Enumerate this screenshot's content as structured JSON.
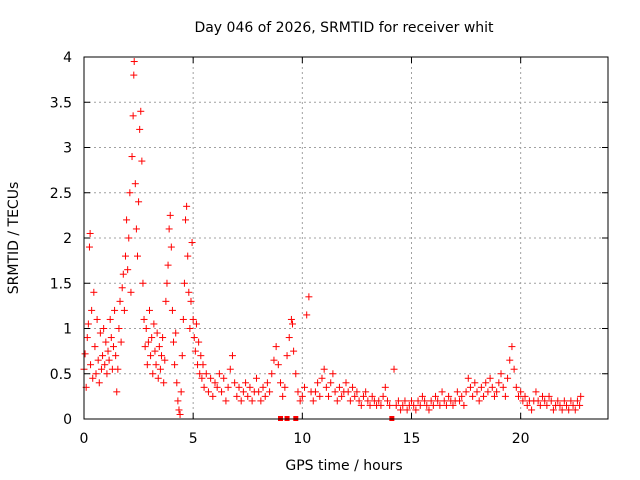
{
  "chart_data": {
    "type": "scatter",
    "title": "Day 046 of 2026, SRMTID for receiver whit",
    "xlabel": "GPS time / hours",
    "ylabel": "SRMTID / TECUs",
    "xlim": [
      0,
      24
    ],
    "ylim": [
      0,
      4
    ],
    "xticks": [
      0,
      5,
      10,
      15,
      20
    ],
    "yticks": [
      0,
      0.5,
      1,
      1.5,
      2,
      2.5,
      3,
      3.5,
      4
    ],
    "ytick_labels": [
      "0",
      "0.5",
      "1",
      "1.5",
      "2",
      "2.5",
      "3",
      "3.5",
      "4"
    ],
    "grid": true,
    "marker": "+",
    "color": "#ff0000",
    "series": [
      {
        "name": "SRMTID",
        "points": [
          [
            0.0,
            0.55
          ],
          [
            0.05,
            0.72
          ],
          [
            0.1,
            0.35
          ],
          [
            0.15,
            0.9
          ],
          [
            0.2,
            1.05
          ],
          [
            0.25,
            1.9
          ],
          [
            0.28,
            2.05
          ],
          [
            0.3,
            0.6
          ],
          [
            0.35,
            1.2
          ],
          [
            0.4,
            0.45
          ],
          [
            0.45,
            1.4
          ],
          [
            0.5,
            0.8
          ],
          [
            0.55,
            0.5
          ],
          [
            0.6,
            1.1
          ],
          [
            0.65,
            0.65
          ],
          [
            0.7,
            0.4
          ],
          [
            0.75,
            0.95
          ],
          [
            0.8,
            0.55
          ],
          [
            0.85,
            0.7
          ],
          [
            0.9,
            1.0
          ],
          [
            0.95,
            0.6
          ],
          [
            1.0,
            0.85
          ],
          [
            1.05,
            0.5
          ],
          [
            1.1,
            0.75
          ],
          [
            1.15,
            0.65
          ],
          [
            1.2,
            1.1
          ],
          [
            1.25,
            0.9
          ],
          [
            1.3,
            0.55
          ],
          [
            1.35,
            0.8
          ],
          [
            1.4,
            1.2
          ],
          [
            1.45,
            0.7
          ],
          [
            1.5,
            0.3
          ],
          [
            1.55,
            0.55
          ],
          [
            1.6,
            1.0
          ],
          [
            1.65,
            1.3
          ],
          [
            1.7,
            0.85
          ],
          [
            1.75,
            1.45
          ],
          [
            1.8,
            1.6
          ],
          [
            1.85,
            1.2
          ],
          [
            1.9,
            1.8
          ],
          [
            1.95,
            2.2
          ],
          [
            2.0,
            1.65
          ],
          [
            2.05,
            2.0
          ],
          [
            2.1,
            2.5
          ],
          [
            2.15,
            1.4
          ],
          [
            2.2,
            2.9
          ],
          [
            2.25,
            3.35
          ],
          [
            2.28,
            3.8
          ],
          [
            2.3,
            3.95
          ],
          [
            2.35,
            2.6
          ],
          [
            2.4,
            2.1
          ],
          [
            2.45,
            1.8
          ],
          [
            2.5,
            2.4
          ],
          [
            2.55,
            3.2
          ],
          [
            2.6,
            3.4
          ],
          [
            2.65,
            2.85
          ],
          [
            2.7,
            1.5
          ],
          [
            2.75,
            1.1
          ],
          [
            2.8,
            0.8
          ],
          [
            2.85,
            1.0
          ],
          [
            2.9,
            0.6
          ],
          [
            2.95,
            0.85
          ],
          [
            3.0,
            1.2
          ],
          [
            3.05,
            0.7
          ],
          [
            3.1,
            0.9
          ],
          [
            3.15,
            0.5
          ],
          [
            3.2,
            1.05
          ],
          [
            3.25,
            0.75
          ],
          [
            3.3,
            0.6
          ],
          [
            3.35,
            0.95
          ],
          [
            3.4,
            0.45
          ],
          [
            3.45,
            0.8
          ],
          [
            3.5,
            0.55
          ],
          [
            3.55,
            0.7
          ],
          [
            3.6,
            0.9
          ],
          [
            3.65,
            0.4
          ],
          [
            3.7,
            0.65
          ],
          [
            3.75,
            1.3
          ],
          [
            3.8,
            1.5
          ],
          [
            3.85,
            1.7
          ],
          [
            3.9,
            2.1
          ],
          [
            3.95,
            2.25
          ],
          [
            4.0,
            1.9
          ],
          [
            4.05,
            1.2
          ],
          [
            4.1,
            0.85
          ],
          [
            4.15,
            0.6
          ],
          [
            4.2,
            0.95
          ],
          [
            4.25,
            0.4
          ],
          [
            4.3,
            0.2
          ],
          [
            4.35,
            0.1
          ],
          [
            4.4,
            0.05
          ],
          [
            4.45,
            0.3
          ],
          [
            4.5,
            0.7
          ],
          [
            4.55,
            1.1
          ],
          [
            4.6,
            1.5
          ],
          [
            4.65,
            2.2
          ],
          [
            4.7,
            2.35
          ],
          [
            4.75,
            1.8
          ],
          [
            4.8,
            1.4
          ],
          [
            4.85,
            1.0
          ],
          [
            4.9,
            1.3
          ],
          [
            4.95,
            1.95
          ],
          [
            5.0,
            1.1
          ],
          [
            5.05,
            0.9
          ],
          [
            5.1,
            0.75
          ],
          [
            5.15,
            1.05
          ],
          [
            5.2,
            0.6
          ],
          [
            5.25,
            0.85
          ],
          [
            5.3,
            0.5
          ],
          [
            5.35,
            0.7
          ],
          [
            5.4,
            0.45
          ],
          [
            5.45,
            0.6
          ],
          [
            5.5,
            0.35
          ],
          [
            5.6,
            0.5
          ],
          [
            5.7,
            0.3
          ],
          [
            5.8,
            0.45
          ],
          [
            5.9,
            0.25
          ],
          [
            6.0,
            0.4
          ],
          [
            6.1,
            0.35
          ],
          [
            6.2,
            0.5
          ],
          [
            6.3,
            0.3
          ],
          [
            6.4,
            0.45
          ],
          [
            6.5,
            0.2
          ],
          [
            6.6,
            0.35
          ],
          [
            6.7,
            0.55
          ],
          [
            6.8,
            0.7
          ],
          [
            6.9,
            0.4
          ],
          [
            7.0,
            0.25
          ],
          [
            7.1,
            0.35
          ],
          [
            7.2,
            0.2
          ],
          [
            7.3,
            0.3
          ],
          [
            7.4,
            0.4
          ],
          [
            7.5,
            0.25
          ],
          [
            7.6,
            0.35
          ],
          [
            7.7,
            0.2
          ],
          [
            7.8,
            0.3
          ],
          [
            7.9,
            0.45
          ],
          [
            8.0,
            0.3
          ],
          [
            8.1,
            0.2
          ],
          [
            8.2,
            0.35
          ],
          [
            8.3,
            0.25
          ],
          [
            8.4,
            0.4
          ],
          [
            8.5,
            0.3
          ],
          [
            8.6,
            0.5
          ],
          [
            8.7,
            0.65
          ],
          [
            8.8,
            0.8
          ],
          [
            8.9,
            0.6
          ],
          [
            9.0,
            0.4
          ],
          [
            9.1,
            0.25
          ],
          [
            9.2,
            0.35
          ],
          [
            9.3,
            0.7
          ],
          [
            9.4,
            0.9
          ],
          [
            9.5,
            1.1
          ],
          [
            9.55,
            1.05
          ],
          [
            9.6,
            0.75
          ],
          [
            9.7,
            0.5
          ],
          [
            9.8,
            0.3
          ],
          [
            9.9,
            0.2
          ],
          [
            10.0,
            0.25
          ],
          [
            10.1,
            0.35
          ],
          [
            10.2,
            1.15
          ],
          [
            10.3,
            1.35
          ],
          [
            10.4,
            0.3
          ],
          [
            10.5,
            0.2
          ],
          [
            10.6,
            0.3
          ],
          [
            10.7,
            0.4
          ],
          [
            10.8,
            0.25
          ],
          [
            10.9,
            0.45
          ],
          [
            11.0,
            0.55
          ],
          [
            11.1,
            0.35
          ],
          [
            11.2,
            0.25
          ],
          [
            11.3,
            0.4
          ],
          [
            11.4,
            0.5
          ],
          [
            11.5,
            0.3
          ],
          [
            11.6,
            0.2
          ],
          [
            11.7,
            0.35
          ],
          [
            11.8,
            0.25
          ],
          [
            11.9,
            0.3
          ],
          [
            12.0,
            0.4
          ],
          [
            12.1,
            0.3
          ],
          [
            12.2,
            0.2
          ],
          [
            12.3,
            0.35
          ],
          [
            12.4,
            0.25
          ],
          [
            12.5,
            0.3
          ],
          [
            12.6,
            0.2
          ],
          [
            12.7,
            0.15
          ],
          [
            12.8,
            0.25
          ],
          [
            12.9,
            0.3
          ],
          [
            13.0,
            0.2
          ],
          [
            13.1,
            0.15
          ],
          [
            13.2,
            0.25
          ],
          [
            13.3,
            0.2
          ],
          [
            13.4,
            0.15
          ],
          [
            13.5,
            0.2
          ],
          [
            13.6,
            0.15
          ],
          [
            13.7,
            0.25
          ],
          [
            13.8,
            0.35
          ],
          [
            13.9,
            0.2
          ],
          [
            14.0,
            0.15
          ],
          [
            14.2,
            0.55
          ],
          [
            14.3,
            0.15
          ],
          [
            14.4,
            0.2
          ],
          [
            14.5,
            0.1
          ],
          [
            14.6,
            0.15
          ],
          [
            14.7,
            0.2
          ],
          [
            14.8,
            0.1
          ],
          [
            14.9,
            0.15
          ],
          [
            15.0,
            0.2
          ],
          [
            15.1,
            0.15
          ],
          [
            15.2,
            0.1
          ],
          [
            15.3,
            0.2
          ],
          [
            15.4,
            0.15
          ],
          [
            15.5,
            0.25
          ],
          [
            15.6,
            0.2
          ],
          [
            15.7,
            0.15
          ],
          [
            15.8,
            0.1
          ],
          [
            15.9,
            0.2
          ],
          [
            16.0,
            0.15
          ],
          [
            16.1,
            0.25
          ],
          [
            16.2,
            0.2
          ],
          [
            16.3,
            0.15
          ],
          [
            16.4,
            0.3
          ],
          [
            16.5,
            0.2
          ],
          [
            16.6,
            0.15
          ],
          [
            16.7,
            0.25
          ],
          [
            16.8,
            0.2
          ],
          [
            16.9,
            0.15
          ],
          [
            17.0,
            0.2
          ],
          [
            17.1,
            0.3
          ],
          [
            17.2,
            0.2
          ],
          [
            17.3,
            0.25
          ],
          [
            17.4,
            0.15
          ],
          [
            17.5,
            0.3
          ],
          [
            17.6,
            0.45
          ],
          [
            17.7,
            0.35
          ],
          [
            17.8,
            0.25
          ],
          [
            17.9,
            0.4
          ],
          [
            18.0,
            0.3
          ],
          [
            18.1,
            0.2
          ],
          [
            18.2,
            0.35
          ],
          [
            18.3,
            0.25
          ],
          [
            18.4,
            0.4
          ],
          [
            18.5,
            0.3
          ],
          [
            18.6,
            0.45
          ],
          [
            18.7,
            0.35
          ],
          [
            18.8,
            0.25
          ],
          [
            18.9,
            0.3
          ],
          [
            19.0,
            0.4
          ],
          [
            19.1,
            0.5
          ],
          [
            19.2,
            0.35
          ],
          [
            19.3,
            0.25
          ],
          [
            19.4,
            0.45
          ],
          [
            19.5,
            0.65
          ],
          [
            19.6,
            0.8
          ],
          [
            19.7,
            0.55
          ],
          [
            19.8,
            0.35
          ],
          [
            19.9,
            0.25
          ],
          [
            20.0,
            0.3
          ],
          [
            20.1,
            0.2
          ],
          [
            20.2,
            0.25
          ],
          [
            20.3,
            0.15
          ],
          [
            20.4,
            0.2
          ],
          [
            20.5,
            0.1
          ],
          [
            20.6,
            0.2
          ],
          [
            20.7,
            0.3
          ],
          [
            20.8,
            0.2
          ],
          [
            20.9,
            0.15
          ],
          [
            21.0,
            0.25
          ],
          [
            21.1,
            0.2
          ],
          [
            21.2,
            0.15
          ],
          [
            21.3,
            0.25
          ],
          [
            21.4,
            0.2
          ],
          [
            21.5,
            0.1
          ],
          [
            21.6,
            0.15
          ],
          [
            21.7,
            0.2
          ],
          [
            21.8,
            0.15
          ],
          [
            21.9,
            0.1
          ],
          [
            22.0,
            0.2
          ],
          [
            22.1,
            0.15
          ],
          [
            22.2,
            0.1
          ],
          [
            22.3,
            0.2
          ],
          [
            22.4,
            0.15
          ],
          [
            22.5,
            0.1
          ],
          [
            22.6,
            0.2
          ],
          [
            22.7,
            0.15
          ],
          [
            22.75,
            0.25
          ]
        ]
      }
    ],
    "zero_markers": [
      {
        "x": 9.0,
        "y": 0
      },
      {
        "x": 9.3,
        "y": 0
      },
      {
        "x": 9.7,
        "y": 0
      },
      {
        "x": 14.1,
        "y": 0
      }
    ]
  }
}
